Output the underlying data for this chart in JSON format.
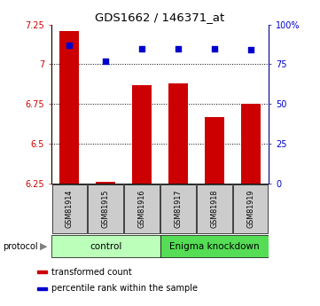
{
  "title": "GDS1662 / 146371_at",
  "samples": [
    "GSM81914",
    "GSM81915",
    "GSM81916",
    "GSM81917",
    "GSM81918",
    "GSM81919"
  ],
  "bar_values": [
    7.21,
    6.26,
    6.87,
    6.88,
    6.67,
    6.75
  ],
  "percentile_values": [
    87,
    77,
    85,
    85,
    85,
    84
  ],
  "bar_bottom": 6.25,
  "ylim_left": [
    6.25,
    7.25
  ],
  "ylim_right": [
    0,
    100
  ],
  "yticks_left": [
    6.25,
    6.5,
    6.75,
    7.0,
    7.25
  ],
  "ytick_labels_left": [
    "6.25",
    "6.5",
    "6.75",
    "7",
    "7.25"
  ],
  "yticks_right": [
    0,
    25,
    50,
    75,
    100
  ],
  "ytick_labels_right": [
    "0",
    "25",
    "50",
    "75",
    "100%"
  ],
  "hlines": [
    6.5,
    6.75,
    7.0
  ],
  "bar_color": "#cc0000",
  "dot_color": "#0000cc",
  "groups": [
    {
      "label": "control",
      "color": "#bbffbb",
      "start": 0,
      "end": 3
    },
    {
      "label": "Enigma knockdown",
      "color": "#55dd55",
      "start": 3,
      "end": 6
    }
  ],
  "protocol_label": "protocol",
  "legend_items": [
    {
      "label": "transformed count",
      "color": "#cc0000"
    },
    {
      "label": "percentile rank within the sample",
      "color": "#0000cc"
    }
  ],
  "bar_width": 0.55,
  "dot_marker": "s",
  "dot_size": 20,
  "sample_label_bg": "#cccccc"
}
